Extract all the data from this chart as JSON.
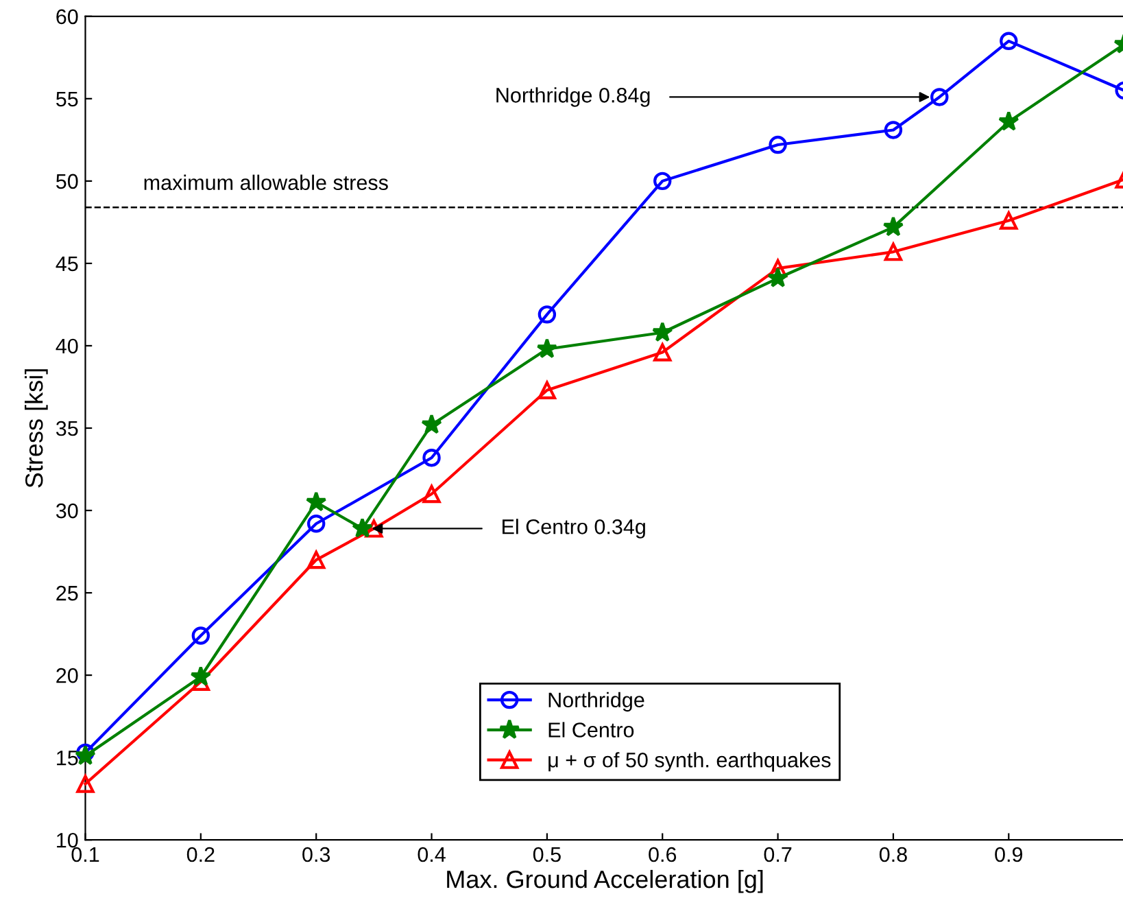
{
  "chart_data": {
    "type": "line",
    "xlabel": "Max. Ground Acceleration [g]",
    "ylabel": "Stress [ksi]",
    "xlim": [
      0.1,
      1.0
    ],
    "ylim": [
      10,
      60
    ],
    "xticks": [
      0.1,
      0.2,
      0.3,
      0.4,
      0.5,
      0.6,
      0.7,
      0.8,
      0.9,
      {
        "value": 1.0,
        "label": null
      }
    ],
    "yticks": [
      10,
      15,
      20,
      25,
      30,
      35,
      40,
      45,
      50,
      55,
      60
    ],
    "grid": false,
    "legend": "bottom right",
    "line_style": "solid",
    "series": [
      {
        "name": "Northridge",
        "color": "#0000ff",
        "marker": "circle",
        "x": [
          0.1,
          0.2,
          0.3,
          0.4,
          0.5,
          0.6,
          0.7,
          0.8,
          0.84,
          0.9,
          1.0
        ],
        "values": [
          15.3,
          22.4,
          29.2,
          33.2,
          41.9,
          50.0,
          52.2,
          53.1,
          55.1,
          58.5,
          55.5
        ]
      },
      {
        "name": "El Centro",
        "color": "#008000",
        "marker": "star",
        "x": [
          0.1,
          0.2,
          0.3,
          0.34,
          0.4,
          0.5,
          0.6,
          0.7,
          0.8,
          0.9,
          1.0
        ],
        "values": [
          15.1,
          19.9,
          30.5,
          28.9,
          35.2,
          39.8,
          40.8,
          44.1,
          47.2,
          53.6,
          58.3
        ]
      },
      {
        "name": "μ + σ of 50 synth. earthquakes",
        "color": "#ff0000",
        "marker": "triangle",
        "x": [
          0.1,
          0.2,
          0.3,
          0.35,
          0.4,
          0.5,
          0.6,
          0.7,
          0.8,
          0.9,
          1.0
        ],
        "values": [
          13.4,
          19.6,
          27.0,
          28.9,
          31.0,
          37.3,
          39.6,
          44.7,
          45.7,
          47.6,
          50.1
        ]
      }
    ],
    "ref_lines": [
      {
        "axis": "y",
        "value": 48.4,
        "label": "maximum allowable stress",
        "color": "#000000",
        "line_style": "dashed"
      }
    ],
    "annotations": [
      {
        "text": "Northridge 0.84g",
        "x": 0.84,
        "y": 55.1
      },
      {
        "text": "El Centro 0.34g",
        "x": 0.34,
        "y": 28.9
      }
    ]
  }
}
